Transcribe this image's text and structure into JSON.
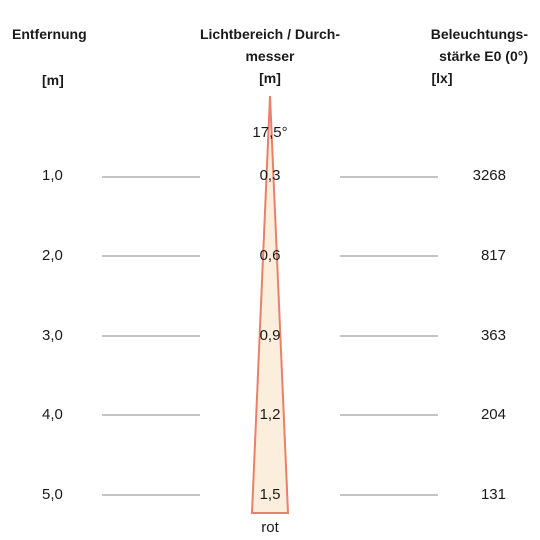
{
  "headers": {
    "distance": "Entfernung",
    "distance_unit": "[m]",
    "beam_line1": "Lichtbereich / Durch-",
    "beam_line2": "messer",
    "beam_unit": "[m]",
    "illum_line1": "Beleuchtungs-",
    "illum_line2": "stärke E0 (0°)",
    "illum_unit": "[lx]"
  },
  "beam_angle": "17,5°",
  "light_color": "rot",
  "colors": {
    "beam_fill": "#fbeedd",
    "beam_edge": "#e8806a",
    "rule_line": "#888888"
  },
  "rows": [
    {
      "distance": "1,0",
      "diameter": "0,3",
      "illuminance": "3268"
    },
    {
      "distance": "2,0",
      "diameter": "0,6",
      "illuminance": "817"
    },
    {
      "distance": "3,0",
      "diameter": "0,9",
      "illuminance": "363"
    },
    {
      "distance": "4,0",
      "diameter": "1,2",
      "illuminance": "204"
    },
    {
      "distance": "5,0",
      "diameter": "1,5",
      "illuminance": "131"
    }
  ]
}
